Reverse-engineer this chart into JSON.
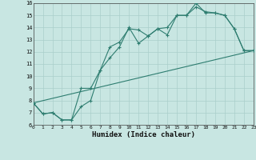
{
  "series1": {
    "x": [
      0,
      1,
      2,
      3,
      4,
      5,
      6,
      7,
      8,
      9,
      10,
      11,
      12,
      13,
      14,
      15,
      16,
      17,
      18,
      19,
      20,
      21,
      22,
      23
    ],
    "y": [
      7.8,
      6.9,
      7.0,
      6.4,
      6.4,
      9.0,
      9.0,
      10.5,
      12.4,
      12.8,
      13.9,
      13.8,
      13.3,
      13.9,
      13.4,
      15.0,
      15.0,
      15.7,
      15.3,
      15.2,
      15.0,
      13.9,
      12.1,
      12.1
    ]
  },
  "series2": {
    "x": [
      0,
      1,
      2,
      3,
      4,
      5,
      6,
      7,
      8,
      9,
      10,
      11,
      12,
      13,
      14,
      15,
      16,
      17,
      18,
      19,
      20,
      21,
      22,
      23
    ],
    "y": [
      7.8,
      6.9,
      7.0,
      6.4,
      6.4,
      7.5,
      8.0,
      10.5,
      11.5,
      12.4,
      14.0,
      12.7,
      13.3,
      13.9,
      14.0,
      15.0,
      15.0,
      16.0,
      15.2,
      15.2,
      15.0,
      13.9,
      12.1,
      12.1
    ]
  },
  "series3": {
    "x": [
      0,
      23
    ],
    "y": [
      7.8,
      12.1
    ]
  },
  "color": "#2e7d70",
  "bg_color": "#c8e6e2",
  "grid_color": "#aacfcb",
  "xlabel": "Humidex (Indice chaleur)",
  "xlim": [
    0,
    23
  ],
  "ylim": [
    6,
    16
  ],
  "yticks": [
    6,
    7,
    8,
    9,
    10,
    11,
    12,
    13,
    14,
    15,
    16
  ],
  "xticks": [
    0,
    1,
    2,
    3,
    4,
    5,
    6,
    7,
    8,
    9,
    10,
    11,
    12,
    13,
    14,
    15,
    16,
    17,
    18,
    19,
    20,
    21,
    22,
    23
  ]
}
